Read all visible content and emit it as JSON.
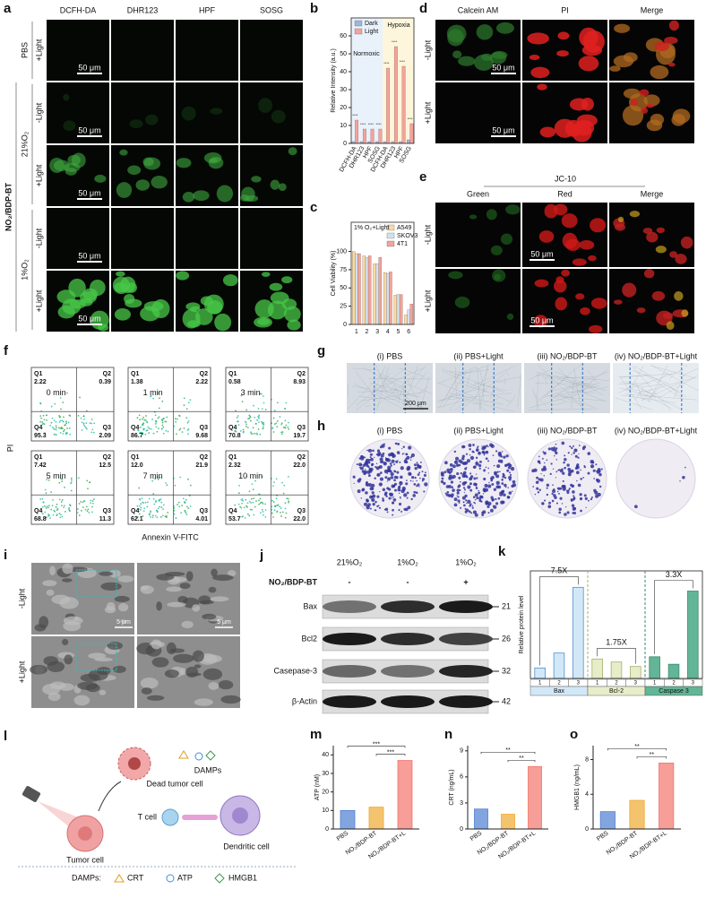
{
  "chart_data": [
    {
      "panel_label": "b",
      "type": "bar",
      "ylabel": "Relative Intensity (a.u.)",
      "categories": [
        "DCFH-DA",
        "DHR123",
        "HPF",
        "SOSG",
        "DCFH-DA",
        "DHR123",
        "HPF",
        "SOSG"
      ],
      "series": [
        {
          "name": "Dark",
          "color": "#9bb7d9",
          "values": [
            1,
            1,
            1,
            1,
            1,
            1,
            1,
            2
          ]
        },
        {
          "name": "Light",
          "color": "#f4a39a",
          "values": [
            13,
            8,
            8,
            8,
            42,
            54,
            43,
            11
          ]
        }
      ],
      "ylim": [
        0,
        70
      ],
      "yticks": [
        0,
        10,
        20,
        30,
        40,
        50,
        60
      ],
      "legend": "upper left",
      "regions": [
        "Normoxic",
        "Hypoxia"
      ],
      "significance": "****"
    },
    {
      "panel_label": "c",
      "type": "bar",
      "title": "1% O₂+Light",
      "ylabel": "Cell Viability (%)",
      "categories": [
        "1",
        "2",
        "3",
        "4",
        "5",
        "6"
      ],
      "series": [
        {
          "name": "A549",
          "color": "#f7dca0",
          "values": [
            100,
            94,
            83,
            71,
            40,
            13
          ]
        },
        {
          "name": "SKOV3",
          "color": "#cfe3ef",
          "values": [
            97,
            92,
            83,
            70,
            41,
            20
          ]
        },
        {
          "name": "4T1",
          "color": "#f4a39a",
          "values": [
            97,
            94,
            92,
            72,
            41,
            28
          ]
        }
      ],
      "ylim": [
        0,
        140
      ],
      "yticks": [
        0,
        25,
        50,
        75,
        100
      ],
      "legend": "upper right"
    },
    {
      "panel_label": "k",
      "type": "bar",
      "ylabel": "Relative protein level",
      "categories": [
        "1",
        "2",
        "3",
        "1",
        "2",
        "3",
        "1",
        "2",
        "3"
      ],
      "values": [
        0.7,
        1.7,
        6.1,
        1.3,
        1.1,
        0.8,
        1.45,
        0.95,
        5.85
      ],
      "groups": [
        {
          "name": "Bax",
          "color": "#d3e8f7",
          "edge": "#4f8fd1"
        },
        {
          "name": "Bcl-2",
          "color": "#e7ecc9",
          "edge": "#a3b06a"
        },
        {
          "name": "Caspase 3",
          "color": "#63b597",
          "edge": "#3d8a6c"
        }
      ],
      "ylim": [
        0,
        7.2
      ],
      "fold_changes": [
        "7.5X",
        "1.75X",
        "3.3X"
      ]
    },
    {
      "panel_label": "m",
      "type": "bar",
      "ylabel": "ATP (nM)",
      "categories": [
        "PBS",
        "NO₂/BDP-BT",
        "NO₂/BDP-BT+L"
      ],
      "values": [
        10,
        11.8,
        37
      ],
      "colors": [
        "#4f7fd1",
        "#f0a930",
        "#f2756b"
      ],
      "ylim": [
        0,
        45
      ],
      "yticks": [
        0,
        10,
        20,
        30,
        40
      ],
      "significance": [
        "***",
        "***"
      ]
    },
    {
      "panel_label": "n",
      "type": "bar",
      "ylabel": "CRT (ng/mL)",
      "categories": [
        "PBS",
        "NO₂/BDP-BT",
        "NO₂/BDP-BT+L"
      ],
      "values": [
        2.3,
        1.7,
        7.2
      ],
      "colors": [
        "#4f7fd1",
        "#f0a930",
        "#f2756b"
      ],
      "ylim": [
        0,
        9.6
      ],
      "yticks": [
        0,
        3,
        6,
        9
      ],
      "significance": [
        "**",
        "**"
      ]
    },
    {
      "panel_label": "o",
      "type": "bar",
      "ylabel": "HMGB1 (ng/mL)",
      "categories": [
        "PBS",
        "NO₂/BDP-BT",
        "NO₂/BDP-BT+L"
      ],
      "values": [
        2.0,
        3.3,
        7.6
      ],
      "colors": [
        "#4f7fd1",
        "#f0a930",
        "#f2756b"
      ],
      "ylim": [
        0,
        9.6
      ],
      "yticks": [
        0,
        4,
        8
      ],
      "significance": [
        "**",
        "**"
      ]
    }
  ],
  "figure": {
    "a": {
      "label": "a",
      "columns": [
        "DCFH-DA",
        "DHR123",
        "HPF",
        "SOSG"
      ],
      "side_label": "NO₂/BDP-BT",
      "groups": [
        "PBS",
        "21%O₂",
        "1%O₂"
      ],
      "rows": [
        "+Light",
        "-Light",
        "+Light",
        "-Light",
        "+Light"
      ],
      "scale_bar": "50 μm"
    },
    "d": {
      "label": "d",
      "columns": [
        "Calcein AM",
        "PI",
        "Merge"
      ],
      "rows": [
        "-Light",
        "+Light"
      ],
      "scale_bar": "50 μm"
    },
    "e": {
      "label": "e",
      "stain": "JC-10",
      "columns": [
        "Green",
        "Red",
        "Merge"
      ],
      "rows": [
        "-Light",
        "+Light"
      ],
      "scale_bar": "50 μm"
    },
    "f": {
      "label": "f",
      "ylabel": "PI",
      "xlabel": "Annexin V-FITC",
      "quadrants": [
        "Q1",
        "Q2",
        "Q3",
        "Q4"
      ],
      "plots": [
        {
          "time": "0 min",
          "q1": "2.22",
          "q2": "0.39",
          "q3": "2.09",
          "q4": "95.3"
        },
        {
          "time": "1 min",
          "q1": "1.38",
          "q2": "2.22",
          "q3": "9.68",
          "q4": "86.7"
        },
        {
          "time": "3 min",
          "q1": "0.58",
          "q2": "8.93",
          "q3": "19.7",
          "q4": "70.8"
        },
        {
          "time": "5 min",
          "q1": "7.42",
          "q2": "12.5",
          "q3": "11.3",
          "q4": "68.8"
        },
        {
          "time": "7 min",
          "q1": "12.0",
          "q2": "21.9",
          "q3": "4.01",
          "q4": "62.1"
        },
        {
          "time": "10 min",
          "q1": "2.32",
          "q2": "22.0",
          "q3": "22.0",
          "q4": "53.7"
        }
      ]
    },
    "g": {
      "label": "g",
      "conditions": [
        "(i) PBS",
        "(ii) PBS+Light",
        "(iii) NO₂/BDP-BT",
        "(iv) NO₂/BDP-BT+Light"
      ],
      "scale_bar": "200 μm"
    },
    "h": {
      "label": "h"
    },
    "i": {
      "label": "i",
      "rows": [
        "-Light",
        "+Light"
      ],
      "scale_bar": "5 μm"
    },
    "j": {
      "label": "j",
      "oxygen": [
        "21%O₂",
        "1%O₂",
        "1%O₂"
      ],
      "treatment_label": "NO₂/BDP-BT",
      "treatment": [
        "-",
        "-",
        "+"
      ],
      "proteins": [
        "Bax",
        "Bcl2",
        "Casepase-3",
        "β-Actin"
      ],
      "weights": [
        "21",
        "26",
        "32",
        "42"
      ]
    },
    "l": {
      "label": "l",
      "cells": [
        "Tumor cell",
        "Dead tumor cell",
        "DAMPs",
        "T cell",
        "Dendritic cell"
      ],
      "legend_title": "DAMPs:",
      "legend": [
        "CRT",
        "ATP",
        "HMGB1"
      ]
    }
  }
}
